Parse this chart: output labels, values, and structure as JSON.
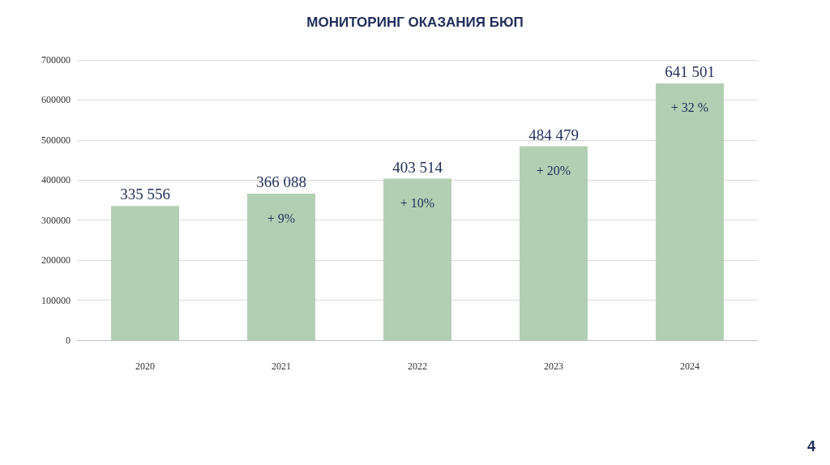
{
  "chart_data": {
    "type": "bar",
    "title": "МОНИТОРИНГ ОКАЗАНИЯ БЮП",
    "categories": [
      "2020",
      "2021",
      "2022",
      "2023",
      "2024"
    ],
    "values": [
      335556,
      366088,
      403514,
      484479,
      641501
    ],
    "value_labels": [
      "335 556",
      "366 088",
      "403 514",
      "484 479",
      "641 501"
    ],
    "color": "#b3cfb3",
    "ylim": [
      0,
      700000
    ],
    "yticks": [
      0,
      100000,
      200000,
      300000,
      400000,
      500000,
      600000,
      700000
    ],
    "grid": "y",
    "annotations": [
      "+ 9%",
      "+ 10%",
      "+ 20%",
      "+ 32 %",
      "4"
    ]
  }
}
